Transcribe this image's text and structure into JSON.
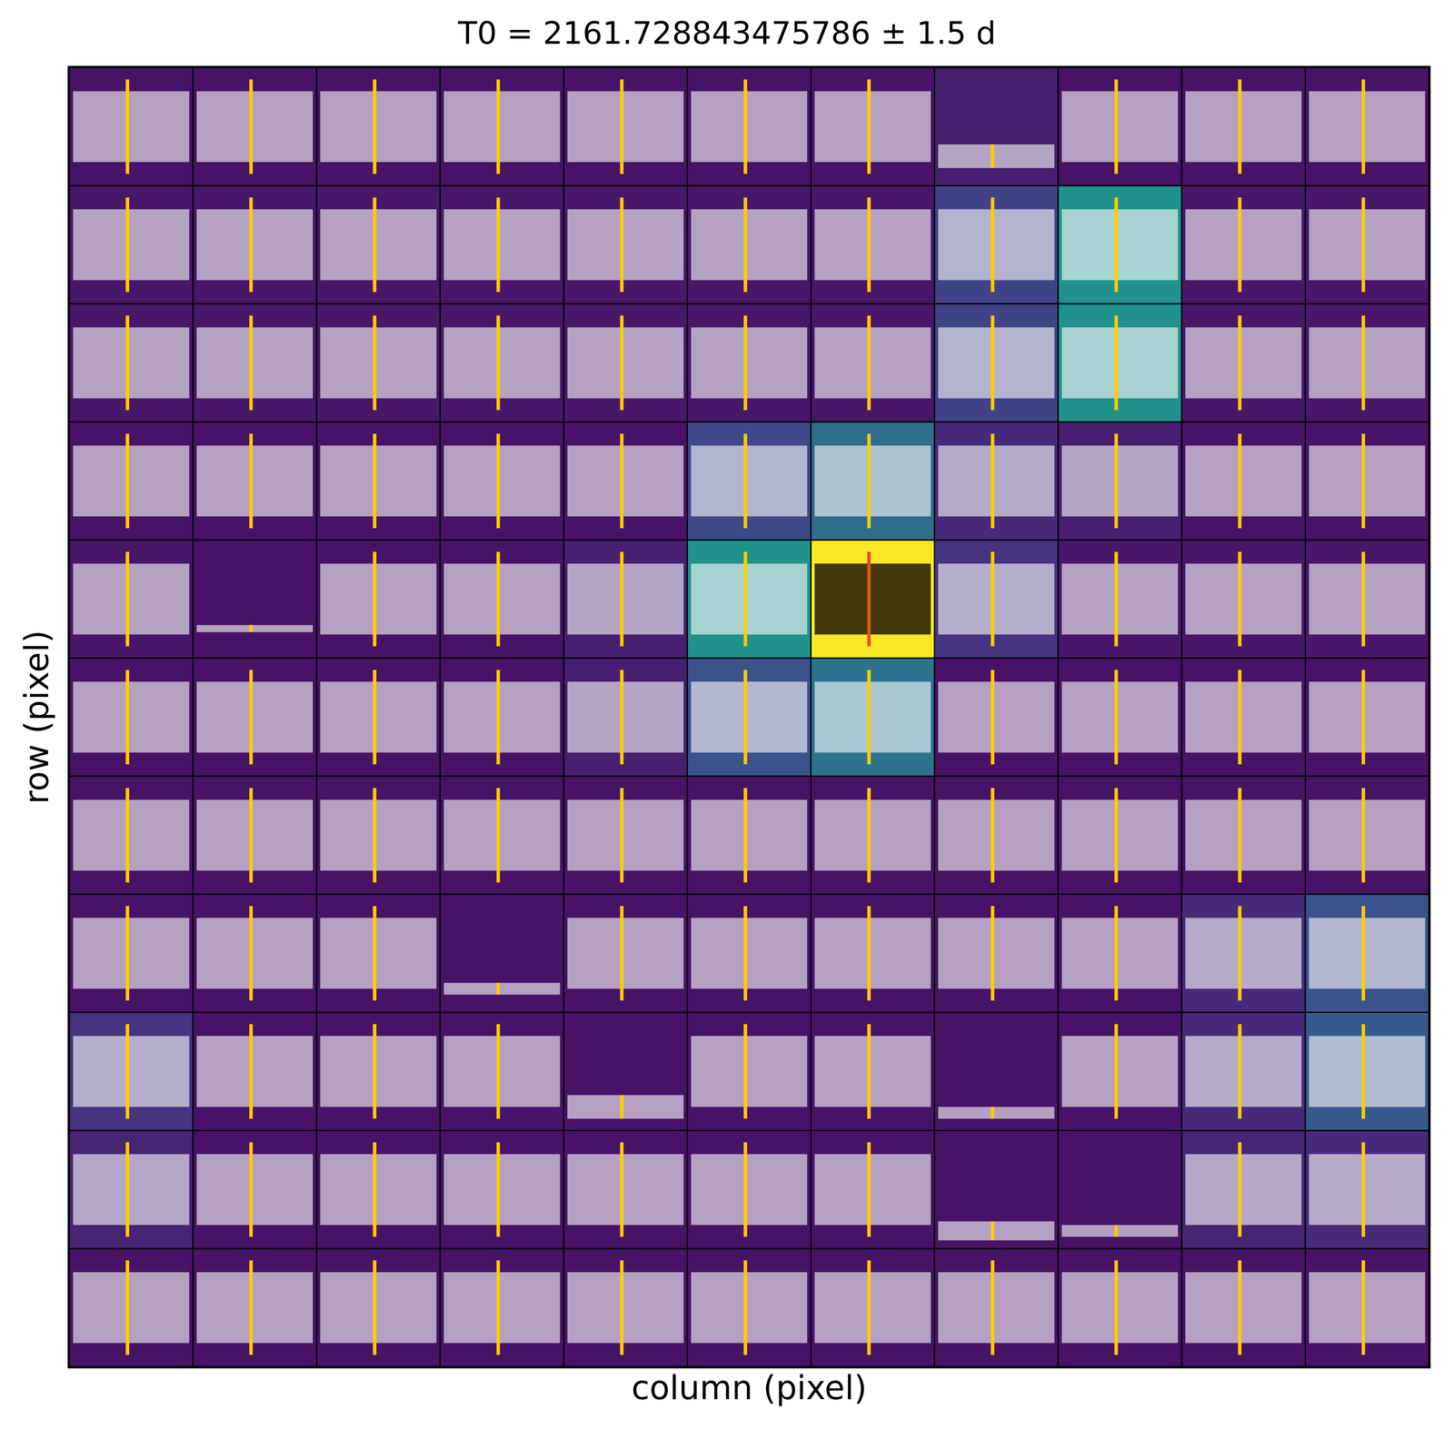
{
  "chart_data": {
    "type": "heatmap",
    "title": "T0 = 2161.728843475786 ± 1.5 d",
    "x_label": "column (pixel)",
    "y_label": "row (pixel)",
    "xlim": [
      -0.5,
      10.5
    ],
    "ylim": [
      -0.5,
      10.5
    ],
    "tick_labels": false,
    "grid": true,
    "cells": [
      [
        0.05,
        0.05,
        0.05,
        0.05,
        0.05,
        0.05,
        0.05,
        0.05,
        0.05,
        0.05,
        0.05
      ],
      [
        0.1,
        0.05,
        0.05,
        0.05,
        0.05,
        0.05,
        0.05,
        0.05,
        0.05,
        0.1,
        0.12
      ],
      [
        0.15,
        0.05,
        0.05,
        0.05,
        0.05,
        0.05,
        0.05,
        0.05,
        0.05,
        0.12,
        0.28
      ],
      [
        0.05,
        0.05,
        0.05,
        0.05,
        0.05,
        0.05,
        0.05,
        0.05,
        0.05,
        0.12,
        0.25
      ],
      [
        0.05,
        0.05,
        0.05,
        0.05,
        0.05,
        0.05,
        0.05,
        0.05,
        0.05,
        0.05,
        0.05
      ],
      [
        0.05,
        0.05,
        0.05,
        0.05,
        0.08,
        0.25,
        0.38,
        0.05,
        0.05,
        0.05,
        0.05
      ],
      [
        0.06,
        0.05,
        0.05,
        0.05,
        0.08,
        0.5,
        1,
        0.15,
        0.06,
        0.06,
        0.06
      ],
      [
        0.05,
        0.05,
        0.05,
        0.05,
        0.05,
        0.22,
        0.35,
        0.12,
        0.08,
        0.05,
        0.05
      ],
      [
        0.06,
        0.06,
        0.06,
        0.06,
        0.06,
        0.06,
        0.06,
        0.2,
        0.5,
        0.06,
        0.06
      ],
      [
        0.06,
        0.06,
        0.06,
        0.06,
        0.06,
        0.06,
        0.06,
        0.2,
        0.5,
        0.06,
        0.06
      ],
      [
        0.05,
        0.05,
        0.05,
        0.05,
        0.05,
        0.05,
        0.05,
        0.08,
        0.05,
        0.05,
        0.05
      ]
    ],
    "zlim": [
      0,
      1
    ],
    "band": {
      "center": 0,
      "half_height": 0.3,
      "color": "#ffffff"
    },
    "flat_cells": [
      {
        "row": 10,
        "column": 7,
        "center": -0.25,
        "half_height": 0.1
      },
      {
        "row": 6,
        "column": 1,
        "center": -0.25,
        "half_height": 0.03
      },
      {
        "row": 3,
        "column": 3,
        "center": -0.3,
        "half_height": 0.05
      },
      {
        "row": 2,
        "column": 4,
        "center": -0.3,
        "half_height": 0.1
      },
      {
        "row": 2,
        "column": 7,
        "center": -0.35,
        "half_height": 0.05
      },
      {
        "row": 1,
        "column": 7,
        "center": -0.35,
        "half_height": 0.08
      },
      {
        "row": 1,
        "column": 8,
        "center": -0.35,
        "half_height": 0.05
      }
    ],
    "transit": {
      "x": -0.03,
      "half_height": 0.4,
      "color": "#ffcc00"
    },
    "target": {
      "row": 6,
      "column": 6,
      "band_color": "#000000",
      "transit_color": "#e8501a"
    }
  }
}
